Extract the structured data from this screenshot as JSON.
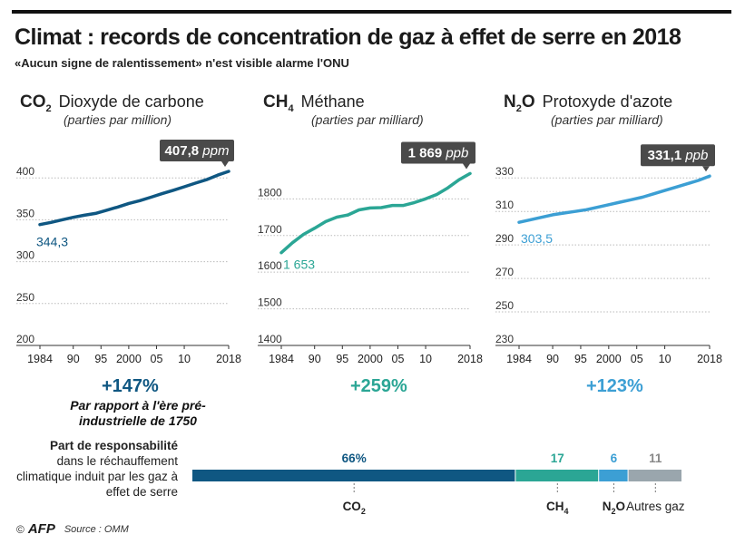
{
  "header": {
    "title": "Climat : records de concentration de gaz à effet de serre en 2018",
    "subtitle": "«Aucun signe de ralentissement» n'est visible alarme l'ONU"
  },
  "panels": [
    {
      "formula": "CO",
      "sub": "2",
      "name": "Dioxyde de carbone",
      "unit": "(parties par million)",
      "change": "+147%",
      "color": "#0f5782"
    },
    {
      "formula": "CH",
      "sub": "4",
      "name": "Méthane",
      "unit": "(parties par milliard)",
      "change": "+259%",
      "color": "#2ba695"
    },
    {
      "formula": "N",
      "sub": "2",
      "formula2": "O",
      "name": "Protoxyde d'azote",
      "unit": "(parties par milliard)",
      "change": "+123%",
      "color": "#3c9fd4"
    }
  ],
  "change_note": "Par rapport à l'ère pré-industrielle de 1750",
  "responsibility": {
    "title": "Part de responsabilité",
    "text": "dans le réchauffement climatique induit par les gaz à effet de serre",
    "segments": [
      {
        "label": "CO",
        "sub": "2",
        "value": 66,
        "value_label": "66%",
        "color": "#0f5782"
      },
      {
        "label": "CH",
        "sub": "4",
        "value": 17,
        "value_label": "17",
        "color": "#2ba695"
      },
      {
        "label": "N",
        "sub": "2",
        "label2": "O",
        "value": 6,
        "value_label": "6",
        "color": "#3c9fd4"
      },
      {
        "label": "Autres gaz",
        "sub": "",
        "value": 11,
        "value_label": "11",
        "color": "#9aa6ad"
      }
    ]
  },
  "footer": {
    "copyright": "©",
    "brand": "AFP",
    "source": "Source : OMM"
  },
  "chart_data": [
    {
      "type": "line",
      "title": "Dioxyde de carbone",
      "ylabel": "(parties par million)",
      "ylim": [
        200,
        410
      ],
      "yticks": [
        200,
        250,
        300,
        350,
        400
      ],
      "ytick_labels": [
        "200",
        "250",
        "300",
        "350",
        "400"
      ],
      "xlim": [
        1984,
        2018
      ],
      "xticks": [
        1984,
        1990,
        1995,
        2000,
        2005,
        2010,
        2018
      ],
      "xtick_labels": [
        "1984",
        "90",
        "95",
        "2000",
        "05",
        "10",
        "2018"
      ],
      "x": [
        1984,
        1986,
        1988,
        1990,
        1992,
        1994,
        1996,
        1998,
        2000,
        2002,
        2004,
        2006,
        2008,
        2010,
        2012,
        2014,
        2016,
        2018
      ],
      "y": [
        344.3,
        346.9,
        350.0,
        353.0,
        355.4,
        357.6,
        361.4,
        365.2,
        369.5,
        372.9,
        377.0,
        381.2,
        385.2,
        389.4,
        393.8,
        397.9,
        403.3,
        407.8
      ],
      "start_label": "344,3",
      "end_value": "407,8",
      "end_unit": "ppm",
      "change": "+147%"
    },
    {
      "type": "line",
      "title": "Méthane",
      "ylabel": "(parties par milliard)",
      "ylim": [
        1400,
        1880
      ],
      "yticks": [
        1400,
        1500,
        1600,
        1700,
        1800
      ],
      "ytick_labels": [
        "1400",
        "1500",
        "1600",
        "1700",
        "1800"
      ],
      "xlim": [
        1984,
        2018
      ],
      "xticks": [
        1984,
        1990,
        1995,
        2000,
        2005,
        2010,
        2018
      ],
      "xtick_labels": [
        "1984",
        "90",
        "95",
        "2000",
        "05",
        "10",
        "2018"
      ],
      "x": [
        1984,
        1986,
        1988,
        1990,
        1992,
        1994,
        1996,
        1998,
        2000,
        2002,
        2004,
        2006,
        2008,
        2010,
        2012,
        2014,
        2016,
        2018
      ],
      "y": [
        1653,
        1680,
        1703,
        1720,
        1738,
        1750,
        1756,
        1770,
        1775,
        1776,
        1782,
        1782,
        1790,
        1800,
        1812,
        1830,
        1852,
        1869
      ],
      "start_label": "1 653",
      "end_value": "1 869",
      "end_unit": "ppb",
      "change": "+259%"
    },
    {
      "type": "line",
      "title": "Protoxyde d'azote",
      "ylabel": "(parties par milliard)",
      "ylim": [
        230,
        335
      ],
      "yticks": [
        230,
        250,
        270,
        290,
        310,
        330
      ],
      "ytick_labels": [
        "230",
        "250",
        "270",
        "290",
        "310",
        "330"
      ],
      "xlim": [
        1984,
        2018
      ],
      "xticks": [
        1984,
        1990,
        1995,
        2000,
        2005,
        2010,
        2018
      ],
      "xtick_labels": [
        "1984",
        "90",
        "95",
        "2000",
        "05",
        "10",
        "2018"
      ],
      "x": [
        1984,
        1986,
        1988,
        1990,
        1992,
        1994,
        1996,
        1998,
        2000,
        2002,
        2004,
        2006,
        2008,
        2010,
        2012,
        2014,
        2016,
        2018
      ],
      "y": [
        303.5,
        305.0,
        306.5,
        308.0,
        309.0,
        310.0,
        311.0,
        312.5,
        314.0,
        315.5,
        317.0,
        318.5,
        320.5,
        322.5,
        324.5,
        326.5,
        328.5,
        331.1
      ],
      "start_label": "303,5",
      "end_value": "331,1",
      "end_unit": "ppb",
      "change": "+123%"
    },
    {
      "type": "bar",
      "title": "Part de responsabilité",
      "categories": [
        "CO2",
        "CH4",
        "N2O",
        "Autres gaz"
      ],
      "values": [
        66,
        17,
        6,
        11
      ]
    }
  ]
}
